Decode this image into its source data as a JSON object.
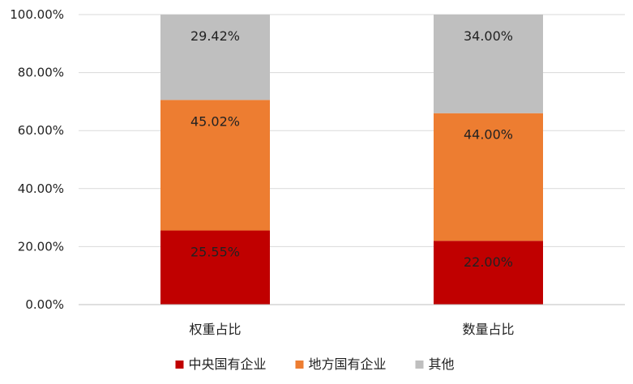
{
  "chart_data": {
    "type": "bar",
    "stacked": true,
    "percent": true,
    "categories": [
      "权重占比",
      "数量占比"
    ],
    "series": [
      {
        "name": "中央国有企业",
        "values": [
          25.55,
          22.0
        ],
        "labels": [
          "25.55%",
          "22.00%"
        ],
        "color": "#c00000"
      },
      {
        "name": "地方国有企业",
        "values": [
          45.02,
          44.0
        ],
        "labels": [
          "45.02%",
          "44.00%"
        ],
        "color": "#ed7d31"
      },
      {
        "name": "其他",
        "values": [
          29.42,
          34.0
        ],
        "labels": [
          "29.42%",
          "34.00%"
        ],
        "color": "#bfbfbf"
      }
    ],
    "y_ticks": [
      "0.00%",
      "20.00%",
      "40.00%",
      "60.00%",
      "80.00%",
      "100.00%"
    ],
    "ylim": [
      0,
      100
    ],
    "grid": true,
    "legend": "bottom",
    "title": "",
    "xlabel": "",
    "ylabel": ""
  }
}
